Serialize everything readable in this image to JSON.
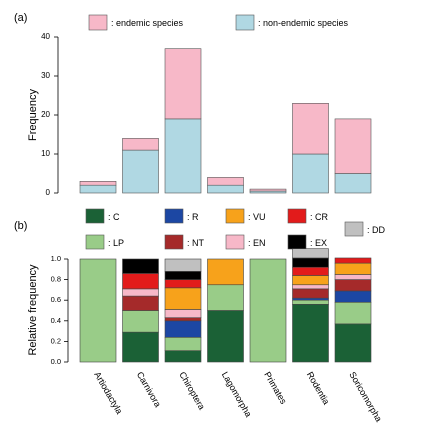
{
  "chart_data": [
    {
      "panel_label": "(a)",
      "type": "bar",
      "stacked": true,
      "categories": [
        "Artiodactyla",
        "Carnivora",
        "Chiroptera",
        "Lagomorpha",
        "Primates",
        "Rodentia",
        "Soricomorpha"
      ],
      "series": [
        {
          "name": ": non-endemic species",
          "key": "nonendemic",
          "color": "#b0d8e3",
          "values": [
            2,
            11,
            19,
            2,
            0.5,
            10,
            5
          ]
        },
        {
          "name": ": endemic species",
          "key": "endemic",
          "color": "#f7b8c8",
          "values": [
            1,
            3,
            18,
            2,
            0.5,
            13,
            14
          ]
        }
      ],
      "ylabel": "Frequency",
      "ylim": [
        0,
        40
      ],
      "yticks": [
        0,
        10,
        20,
        30,
        40
      ],
      "grid": false,
      "legend_position": "top"
    },
    {
      "panel_label": "(b)",
      "type": "bar",
      "stacked": true,
      "categories": [
        "Artiodactyla",
        "Carnivora",
        "Chiroptera",
        "Lagomorpha",
        "Primates",
        "Rodentia",
        "Soricomorpha"
      ],
      "series": [
        {
          "name": ": C",
          "color": "#1b6136",
          "values": [
            0,
            0.29,
            0.11,
            0.5,
            0,
            0.56,
            0.37
          ]
        },
        {
          "name": ": LP",
          "color": "#99cc88",
          "values": [
            1,
            0.21,
            0.13,
            0.25,
            1,
            0.04,
            0.21
          ]
        },
        {
          "name": ": R",
          "color": "#1c47a3",
          "values": [
            0,
            0,
            0.16,
            0,
            0,
            0.02,
            0.11
          ]
        },
        {
          "name": ": NT",
          "color": "#a52a2a",
          "values": [
            0,
            0.14,
            0.03,
            0,
            0,
            0.09,
            0.11
          ]
        },
        {
          "name": ": EN",
          "color": "#f7b8c8",
          "values": [
            0,
            0.07,
            0.08,
            0,
            0,
            0.04,
            0.05
          ]
        },
        {
          "name": ": VU",
          "color": "#f7a21b",
          "values": [
            0,
            0,
            0.21,
            0.25,
            0,
            0.09,
            0.11
          ]
        },
        {
          "name": ": CR",
          "color": "#e21b1b",
          "values": [
            0,
            0.15,
            0.08,
            0,
            0,
            0.08,
            0.05
          ]
        },
        {
          "name": ": EX",
          "color": "#000000",
          "values": [
            0,
            0.14,
            0.08,
            0,
            0,
            0.09,
            0
          ]
        },
        {
          "name": ": DD",
          "color": "#c0c0c0",
          "values": [
            0,
            0,
            0.12,
            0,
            0,
            0.09,
            0
          ]
        }
      ],
      "ylabel": "Relative frequency",
      "ylim": [
        0,
        1
      ],
      "yticks": [
        "0.0",
        "0.2",
        "0.4",
        "0.6",
        "0.8",
        "1.0"
      ],
      "grid": false,
      "legend_position": "top"
    }
  ]
}
